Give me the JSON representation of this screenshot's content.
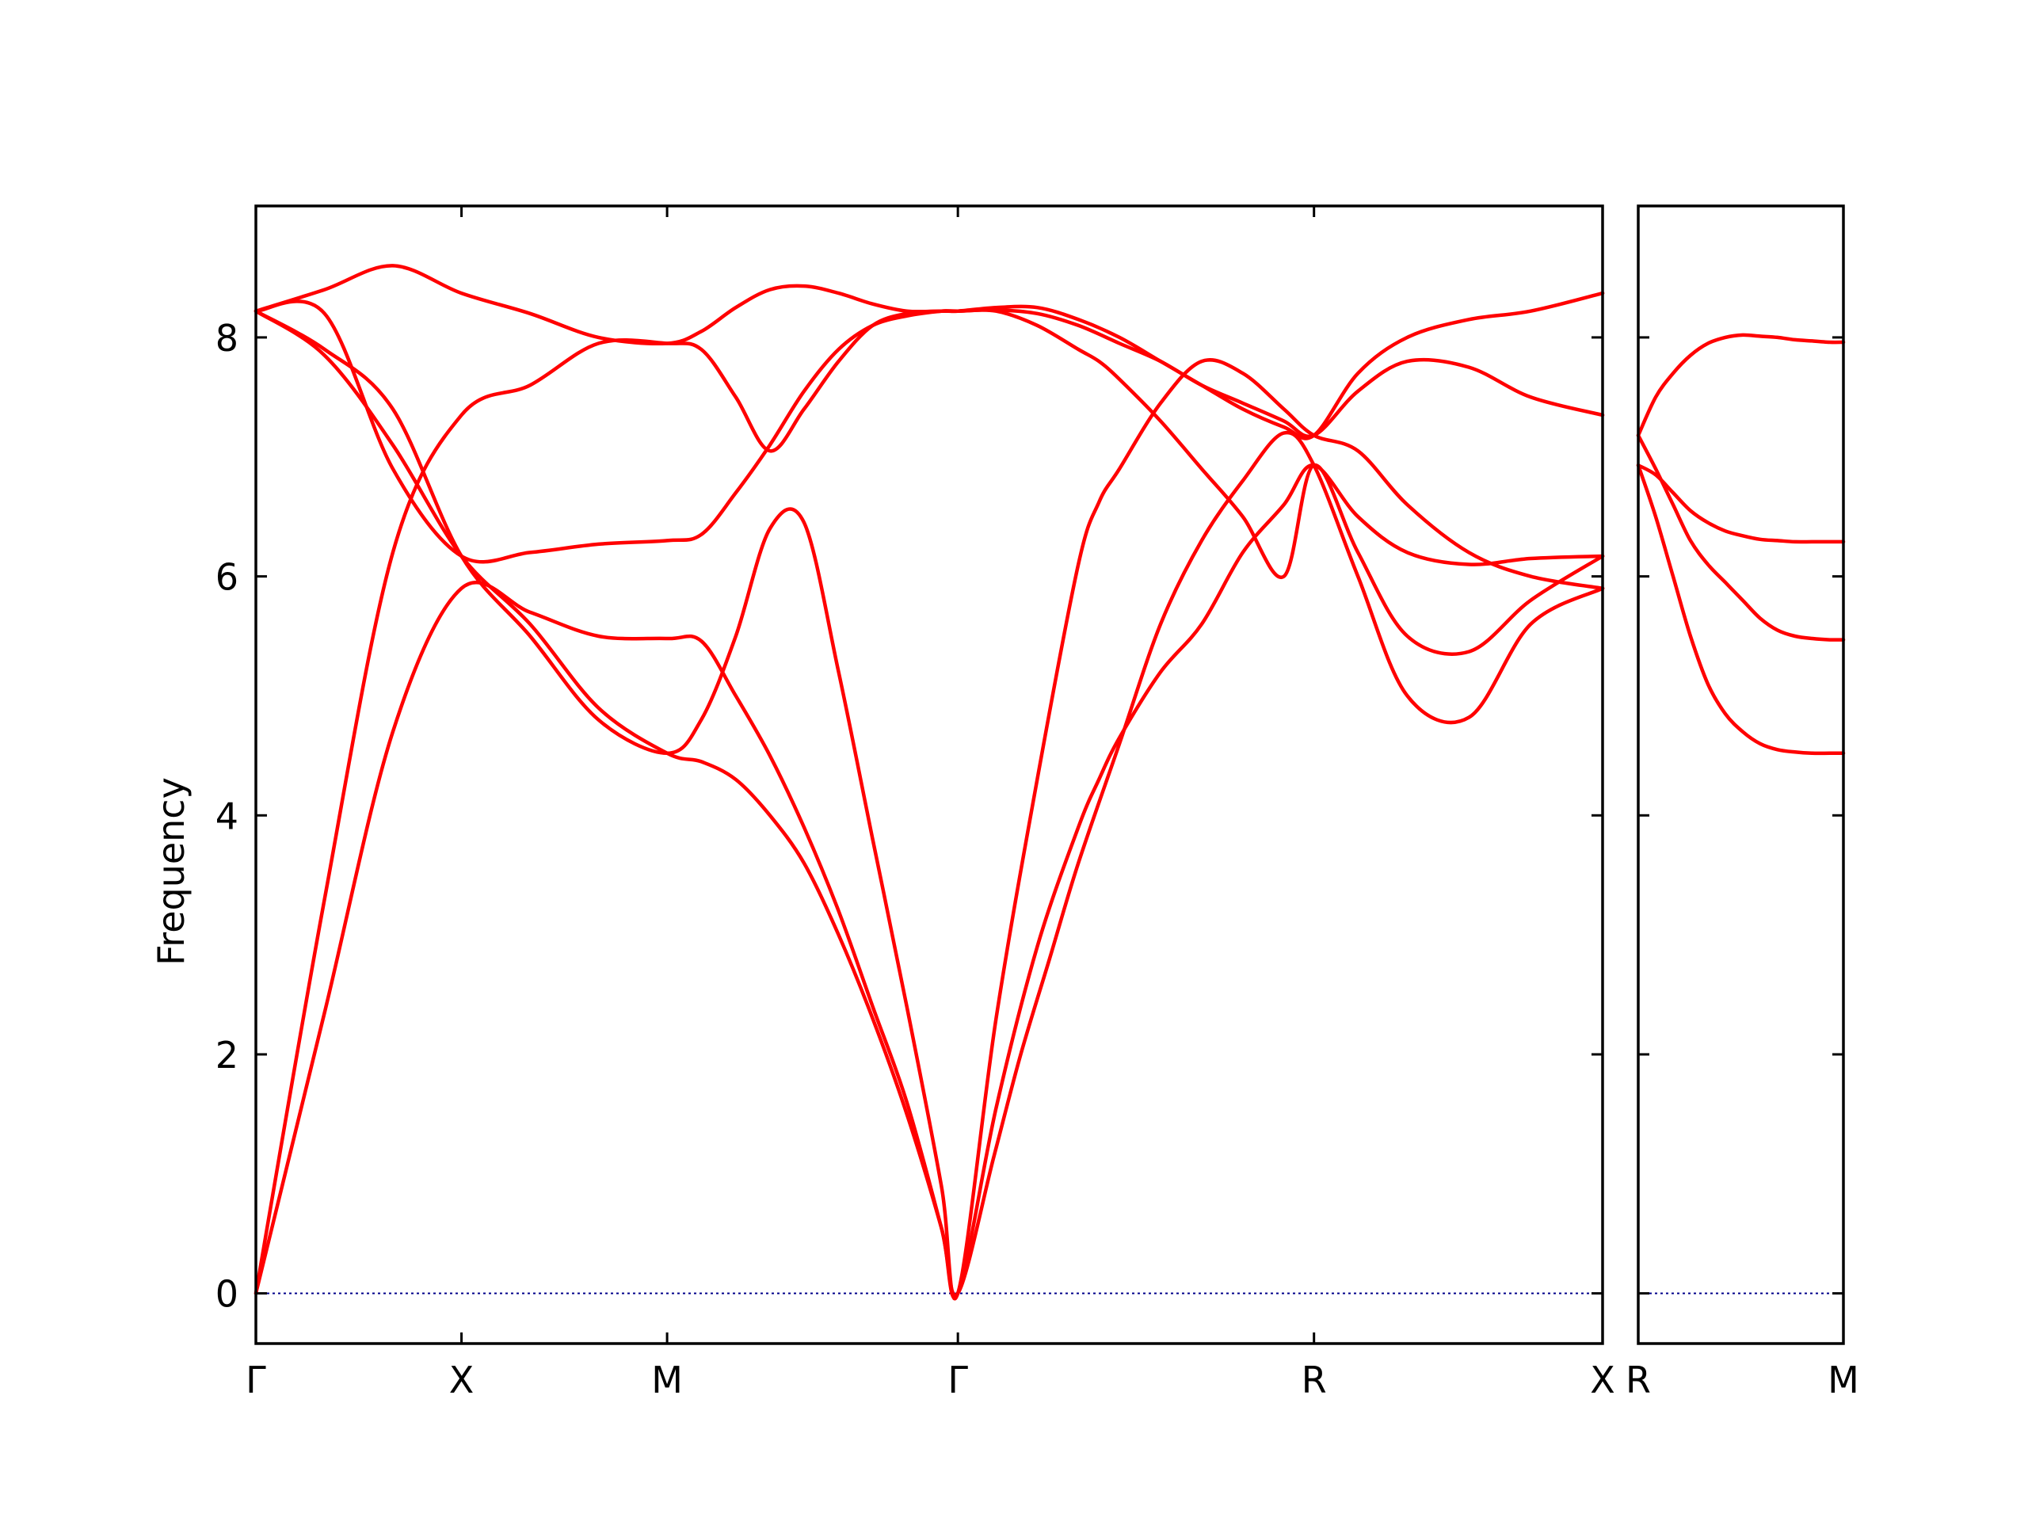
{
  "chart_data": {
    "type": "line",
    "title": "",
    "ylabel": "Frequency",
    "ylim": [
      -0.42,
      9.1
    ],
    "yticks": [
      0,
      2,
      4,
      6,
      8
    ],
    "grid": false,
    "legend": "none",
    "colors": {
      "band": "#ff0000",
      "zero_line": "#00008b",
      "frame": "#000000"
    },
    "panels": [
      {
        "name": "main",
        "xlim": [
          0,
          3.2749
        ],
        "high_symmetry_points": [
          {
            "label": "Γ",
            "x": 0
          },
          {
            "label": "X",
            "x": 0.5
          },
          {
            "label": "M",
            "x": 1.0
          },
          {
            "label": "Γ",
            "x": 1.7071
          },
          {
            "label": "R",
            "x": 2.5731
          },
          {
            "label": "X",
            "x": 3.2749
          }
        ],
        "bands": [
          {
            "x": [
              0,
              0.167,
              0.333,
              0.5,
              0.667,
              0.833,
              1.0,
              1.083,
              1.167,
              1.25,
              1.333,
              1.417,
              1.5,
              1.583,
              1.667,
              1.707,
              1.795,
              1.86,
              1.93,
              2.0,
              2.1,
              2.2,
              2.3,
              2.4,
              2.5,
              2.573,
              2.68,
              2.8,
              2.95,
              3.1,
              3.275
            ],
            "y": [
              0,
              2.35,
              4.7,
              5.9,
              5.7,
              5.5,
              5.48,
              5.46,
              5.0,
              4.5,
              3.9,
              3.2,
              2.4,
              1.6,
              0.55,
              0,
              1.15,
              2.0,
              2.8,
              3.6,
              4.6,
              5.6,
              6.3,
              6.8,
              7.2,
              6.93,
              6.0,
              5.0,
              4.82,
              5.6,
              5.9
            ]
          },
          {
            "x": [
              0,
              0.167,
              0.333,
              0.5,
              0.667,
              0.833,
              1.0,
              1.083,
              1.167,
              1.25,
              1.333,
              1.417,
              1.5,
              1.583,
              1.667,
              1.707,
              1.8,
              1.9,
              2.0,
              2.05,
              2.1,
              2.2,
              2.3,
              2.4,
              2.5,
              2.573,
              2.68,
              2.8,
              2.95,
              3.1,
              3.275
            ],
            "y": [
              0,
              3.3,
              6.2,
              7.35,
              7.6,
              7.95,
              7.95,
              7.9,
              7.5,
              7.05,
              7.4,
              7.8,
              8.1,
              8.2,
              8.22,
              8.22,
              8.22,
              8.1,
              7.9,
              7.8,
              7.65,
              7.3,
              6.9,
              6.5,
              6.0,
              6.93,
              6.2,
              5.5,
              5.37,
              5.8,
              6.17
            ]
          },
          {
            "x": [
              0,
              0.167,
              0.333,
              0.5,
              0.667,
              0.833,
              1.0,
              1.083,
              1.167,
              1.25,
              1.333,
              1.417,
              1.5,
              1.583,
              1.667,
              1.707,
              1.8,
              1.9,
              2.0,
              2.05,
              2.1,
              2.2,
              2.3,
              2.4,
              2.5,
              2.573,
              2.68,
              2.8,
              2.95,
              3.1,
              3.275
            ],
            "y": [
              8.22,
              7.9,
              7.4,
              6.17,
              5.5,
              4.8,
              4.52,
              4.8,
              5.5,
              6.4,
              6.45,
              5.2,
              3.8,
              2.4,
              0.9,
              0,
              2.3,
              4.3,
              6.1,
              6.62,
              6.9,
              7.45,
              7.8,
              7.7,
              7.4,
              7.18,
              7.05,
              6.6,
              6.2,
              6.0,
              5.9
            ]
          },
          {
            "x": [
              0,
              0.167,
              0.333,
              0.5,
              0.667,
              0.833,
              1.0,
              1.083,
              1.167,
              1.25,
              1.333,
              1.417,
              1.5,
              1.583,
              1.667,
              1.707,
              1.8,
              1.9,
              2.0,
              2.05,
              2.1,
              2.2,
              2.3,
              2.4,
              2.5,
              2.573,
              2.68,
              2.8,
              2.95,
              3.1,
              3.275
            ],
            "y": [
              8.22,
              7.85,
              7.1,
              6.17,
              5.6,
              4.9,
              4.52,
              4.45,
              4.3,
              4.0,
              3.6,
              3.0,
              2.3,
              1.5,
              0.55,
              0,
              1.55,
              2.9,
              3.9,
              4.3,
              4.65,
              5.2,
              5.6,
              6.2,
              6.6,
              6.93,
              6.5,
              6.2,
              6.1,
              6.15,
              6.17
            ]
          },
          {
            "x": [
              0,
              0.167,
              0.333,
              0.5,
              0.667,
              0.833,
              1.0,
              1.083,
              1.167,
              1.25,
              1.333,
              1.417,
              1.5,
              1.583,
              1.667,
              1.707,
              1.8,
              1.9,
              2.0,
              2.1,
              2.2,
              2.3,
              2.4,
              2.5,
              2.573,
              2.68,
              2.8,
              2.95,
              3.1,
              3.275
            ],
            "y": [
              8.22,
              8.2,
              6.9,
              6.17,
              6.2,
              6.27,
              6.3,
              6.35,
              6.7,
              7.1,
              7.55,
              7.9,
              8.1,
              8.18,
              8.22,
              8.22,
              8.25,
              8.25,
              8.15,
              8.0,
              7.8,
              7.6,
              7.4,
              7.25,
              7.18,
              7.7,
              8.0,
              8.15,
              8.22,
              8.37
            ]
          },
          {
            "x": [
              0,
              0.167,
              0.333,
              0.5,
              0.667,
              0.833,
              1.0,
              1.083,
              1.167,
              1.25,
              1.333,
              1.417,
              1.5,
              1.583,
              1.667,
              1.707,
              1.8,
              1.9,
              2.0,
              2.1,
              2.2,
              2.3,
              2.4,
              2.5,
              2.573,
              2.68,
              2.8,
              2.95,
              3.1,
              3.275
            ],
            "y": [
              8.22,
              8.4,
              8.6,
              8.37,
              8.2,
              8.0,
              7.95,
              8.05,
              8.25,
              8.4,
              8.43,
              8.37,
              8.28,
              8.22,
              8.22,
              8.22,
              8.23,
              8.2,
              8.1,
              7.95,
              7.8,
              7.6,
              7.45,
              7.3,
              7.18,
              7.55,
              7.8,
              7.75,
              7.5,
              7.35
            ]
          }
        ]
      },
      {
        "name": "inset",
        "xlim": [
          0,
          0.7071
        ],
        "high_symmetry_points": [
          {
            "label": "R",
            "x": 0
          },
          {
            "label": "M",
            "x": 0.7071
          }
        ],
        "bands": [
          {
            "x": [
              0,
              0.06,
              0.12,
              0.18,
              0.24,
              0.3,
              0.36,
              0.42,
              0.48,
              0.54,
              0.6,
              0.66,
              0.7071
            ],
            "y": [
              6.93,
              6.5,
              6.0,
              5.5,
              5.1,
              4.85,
              4.7,
              4.6,
              4.55,
              4.53,
              4.52,
              4.52,
              4.52
            ]
          },
          {
            "x": [
              0,
              0.06,
              0.12,
              0.18,
              0.24,
              0.3,
              0.36,
              0.42,
              0.48,
              0.54,
              0.6,
              0.66,
              0.7071
            ],
            "y": [
              7.18,
              6.9,
              6.6,
              6.3,
              6.1,
              5.95,
              5.8,
              5.65,
              5.55,
              5.5,
              5.48,
              5.47,
              5.47
            ]
          },
          {
            "x": [
              0,
              0.06,
              0.12,
              0.18,
              0.24,
              0.3,
              0.36,
              0.42,
              0.48,
              0.54,
              0.6,
              0.66,
              0.7071
            ],
            "y": [
              6.93,
              6.85,
              6.7,
              6.55,
              6.45,
              6.38,
              6.34,
              6.31,
              6.3,
              6.29,
              6.29,
              6.29,
              6.29
            ]
          },
          {
            "x": [
              0,
              0.06,
              0.12,
              0.18,
              0.24,
              0.3,
              0.36,
              0.42,
              0.48,
              0.54,
              0.6,
              0.66,
              0.7071
            ],
            "y": [
              7.18,
              7.5,
              7.7,
              7.85,
              7.95,
              8.0,
              8.02,
              8.01,
              8.0,
              7.98,
              7.97,
              7.96,
              7.96
            ]
          }
        ]
      }
    ]
  }
}
